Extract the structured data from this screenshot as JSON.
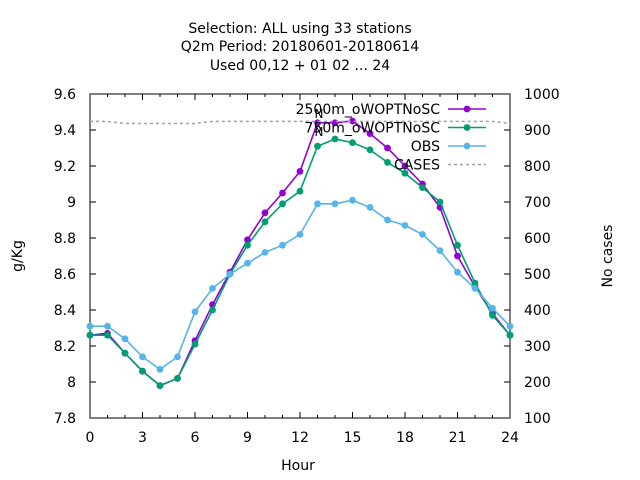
{
  "chart_data": {
    "type": "line",
    "title_lines": [
      "Selection: ALL using    33 stations",
      "Q2m   Period: 20180601-20180614",
      "Used  00,12  + 01 02 ... 24"
    ],
    "xlabel": "Hour",
    "ylabel": "g/Kg",
    "y2label": "No cases",
    "xlim": [
      0,
      24
    ],
    "ylim": [
      7.8,
      9.6
    ],
    "y2lim": [
      100,
      1000
    ],
    "x_ticks": [
      0,
      3,
      6,
      9,
      12,
      15,
      18,
      21,
      24
    ],
    "y_ticks": [
      "7.8",
      "8",
      "8.2",
      "8.4",
      "8.6",
      "8.8",
      "9",
      "9.2",
      "9.4",
      "9.6"
    ],
    "y2_ticks": [
      "100",
      "200",
      "300",
      "400",
      "500",
      "600",
      "700",
      "800",
      "900",
      "1000"
    ],
    "legend_position": "top-right",
    "x": [
      0,
      1,
      2,
      3,
      4,
      5,
      6,
      7,
      8,
      9,
      10,
      11,
      12,
      13,
      14,
      15,
      16,
      17,
      18,
      19,
      20,
      21,
      22,
      23,
      24
    ],
    "series": [
      {
        "name": "2500m_oWOPTNoSC",
        "color": "#9400d3",
        "axis": "y1",
        "values": [
          8.26,
          8.27,
          8.16,
          8.06,
          7.98,
          8.02,
          8.23,
          8.43,
          8.61,
          8.79,
          8.94,
          9.05,
          9.17,
          9.44,
          9.44,
          9.45,
          9.38,
          9.3,
          9.2,
          9.1,
          8.97,
          8.7,
          8.53,
          8.38,
          8.26
        ]
      },
      {
        "name": "750m_oWOPTNoSC",
        "color": "#009e73",
        "axis": "y1",
        "values": [
          8.26,
          8.26,
          8.16,
          8.06,
          7.98,
          8.02,
          8.21,
          8.4,
          8.6,
          8.76,
          8.89,
          8.99,
          9.06,
          9.31,
          9.35,
          9.33,
          9.29,
          9.22,
          9.16,
          9.08,
          9.0,
          8.76,
          8.55,
          8.37,
          8.26
        ]
      },
      {
        "name": "OBS",
        "color": "#56b4e9",
        "axis": "y1",
        "values": [
          8.31,
          8.31,
          8.24,
          8.14,
          8.07,
          8.14,
          8.39,
          8.52,
          8.6,
          8.66,
          8.72,
          8.76,
          8.82,
          8.99,
          8.99,
          9.01,
          8.97,
          8.9,
          8.87,
          8.82,
          8.73,
          8.61,
          8.52,
          8.41,
          8.31
        ]
      },
      {
        "name": "CASES",
        "color": "#a0a0a0",
        "axis": "y2",
        "dashed": true,
        "values": [
          924,
          924,
          918,
          918,
          918,
          918,
          918,
          924,
          924,
          924,
          924,
          924,
          924,
          924,
          924,
          924,
          924,
          924,
          924,
          924,
          924,
          924,
          924,
          924,
          918
        ]
      }
    ],
    "annotation_text": [
      "N",
      "N"
    ]
  }
}
